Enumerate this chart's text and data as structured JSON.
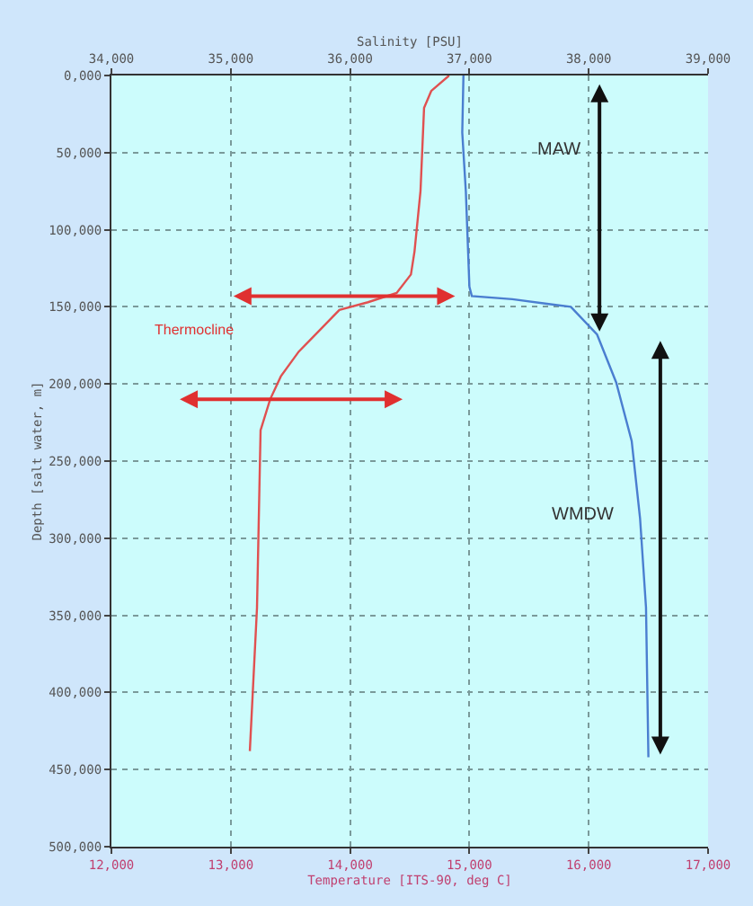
{
  "chart_data": {
    "type": "line",
    "xlabel": "Temperature [ITS-90, deg C]",
    "x2label": "Salinity [PSU]",
    "ylabel": "Depth [salt water, m]",
    "xlim": [
      12000,
      17000
    ],
    "xticks": [
      {
        "value": 12000,
        "label": "12,000"
      },
      {
        "value": 13000,
        "label": "13,000"
      },
      {
        "value": 14000,
        "label": "14,000"
      },
      {
        "value": 15000,
        "label": "15,000"
      },
      {
        "value": 16000,
        "label": "16,000"
      },
      {
        "value": 17000,
        "label": "17,000"
      }
    ],
    "x2lim": [
      34000,
      39000
    ],
    "x2ticks": [
      {
        "value": 34000,
        "label": "34,000"
      },
      {
        "value": 35000,
        "label": "35,000"
      },
      {
        "value": 36000,
        "label": "36,000"
      },
      {
        "value": 37000,
        "label": "37,000"
      },
      {
        "value": 38000,
        "label": "38,000"
      },
      {
        "value": 39000,
        "label": "39,000"
      }
    ],
    "ylim": [
      500000,
      0
    ],
    "yticks": [
      {
        "value": 0,
        "label": "0,000"
      },
      {
        "value": 50000,
        "label": "50,000"
      },
      {
        "value": 100000,
        "label": "100,000"
      },
      {
        "value": 150000,
        "label": "150,000"
      },
      {
        "value": 200000,
        "label": "200,000"
      },
      {
        "value": 250000,
        "label": "250,000"
      },
      {
        "value": 300000,
        "label": "300,000"
      },
      {
        "value": 350000,
        "label": "350,000"
      },
      {
        "value": 400000,
        "label": "400,000"
      },
      {
        "value": 450000,
        "label": "450,000"
      },
      {
        "value": 500000,
        "label": "500,000"
      }
    ],
    "grid": true,
    "line_style": "solid",
    "marker": "none",
    "series": [
      {
        "color": "#e05050",
        "x": [
          14830,
          14680,
          14620,
          14590,
          14540,
          14510,
          14390,
          14150,
          13910,
          13760,
          13570,
          13420,
          13330,
          13250,
          13240,
          13220,
          13160
        ],
        "values": [
          0,
          10000,
          21000,
          75000,
          114000,
          129000,
          141000,
          147000,
          152000,
          164000,
          179000,
          195000,
          210000,
          230000,
          268000,
          345000,
          438000
        ]
      },
      {
        "color": "#4a7ed0",
        "axis": "x2",
        "x": [
          36950,
          36940,
          36970,
          37000,
          37020,
          37360,
          37650,
          37850,
          38070,
          38230,
          38360,
          38430,
          38480,
          38500
        ],
        "values": [
          0,
          37000,
          75000,
          137000,
          143000,
          145000,
          148000,
          150000,
          168000,
          199000,
          237000,
          287000,
          345000,
          442000
        ]
      }
    ],
    "annotations": [
      "MAW",
      "Thermocline",
      "WMDW"
    ]
  }
}
